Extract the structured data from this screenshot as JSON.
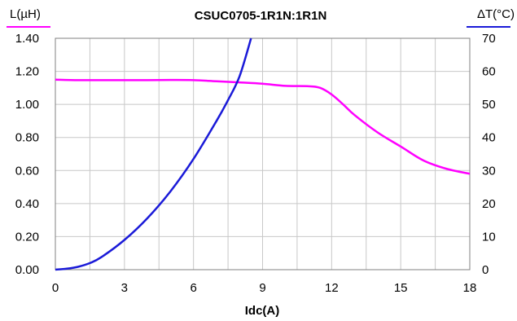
{
  "chart_data": {
    "type": "line",
    "title": "CSUC0705-1R1N:1R1N",
    "xlabel": "Idc(A)",
    "ylabel_left": "L(µH)",
    "ylabel_right": "ΔT(°C)",
    "xlim": [
      0,
      18
    ],
    "ylim_left": [
      0,
      1.4
    ],
    "ylim_right": [
      0,
      70
    ],
    "x_ticks": [
      "0",
      "3",
      "6",
      "9",
      "12",
      "15",
      "18"
    ],
    "y_left_ticks": [
      "0.00",
      "0.20",
      "0.40",
      "0.60",
      "0.80",
      "1.00",
      "1.20",
      "1.40"
    ],
    "y_right_ticks": [
      "0",
      "10",
      "20",
      "30",
      "40",
      "50",
      "60",
      "70"
    ],
    "grid": true,
    "series": [
      {
        "axis": "left",
        "color": "#ff00ff",
        "x": [
          0,
          1,
          2,
          3,
          4,
          5,
          6,
          7,
          8,
          9,
          10,
          11,
          11.5,
          12,
          12.5,
          13,
          14,
          15,
          16,
          17,
          18
        ],
        "values": [
          1.15,
          1.147,
          1.147,
          1.147,
          1.147,
          1.148,
          1.147,
          1.14,
          1.133,
          1.125,
          1.112,
          1.11,
          1.1,
          1.06,
          1.0,
          0.935,
          0.83,
          0.745,
          0.66,
          0.61,
          0.58
        ]
      },
      {
        "axis": "right",
        "color": "#1a1ad8",
        "x": [
          0,
          0.5,
          1,
          1.5,
          2,
          3,
          4,
          5,
          6,
          7,
          7.5,
          8,
          8.5
        ],
        "values": [
          0,
          0.3,
          0.9,
          2.0,
          3.8,
          9.0,
          15.6,
          23.7,
          33.5,
          45.0,
          51.3,
          58.5,
          70
        ]
      }
    ]
  }
}
